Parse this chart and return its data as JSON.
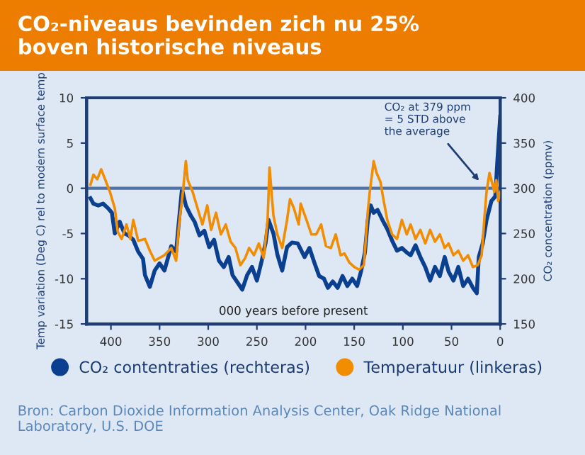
{
  "chart_data": {
    "type": "line",
    "title": "CO₂-niveaus bevinden zich nu 25%\nboven historische niveaus",
    "xlabel": "000 years before present",
    "ylabel": "Temp variation (Deg C) rel to modern surface temp",
    "y2label": "CO₂ concentration (ppmv)",
    "xlim": [
      425,
      0
    ],
    "xticks": [
      400,
      350,
      300,
      250,
      200,
      150,
      100,
      50,
      0
    ],
    "ylim": [
      -15,
      10
    ],
    "yticks": [
      -15,
      -10,
      -5,
      0,
      5,
      10
    ],
    "y2lim": [
      150,
      400
    ],
    "y2ticks": [
      150,
      200,
      250,
      300,
      350,
      400
    ],
    "grid": false,
    "legend": "bottom",
    "ref_lines": [
      {
        "axis": "y",
        "value": 0,
        "color": "#4f73a6"
      }
    ],
    "annotations": [
      "CO₂ at 379 ppm\n= 5 STD above\nthe average",
      "Bron: Carbon Dioxide Information Analysis Center, Oak Ridge National Laboratory, U.S. DOE"
    ],
    "series": [
      {
        "name": "CO₂ contentraties (rechteras)",
        "color": "#0b3f8f",
        "axis": "y2",
        "x": [
          421,
          418,
          413,
          408,
          403,
          399,
          396,
          391,
          386,
          382,
          377,
          372,
          367,
          365,
          360,
          355,
          350,
          345,
          338,
          333,
          330,
          327,
          323,
          318,
          314,
          309,
          304,
          299,
          294,
          289,
          284,
          279,
          275,
          270,
          265,
          260,
          255,
          250,
          245,
          241,
          238,
          233,
          229,
          224,
          219,
          214,
          208,
          201,
          196,
          191,
          186,
          181,
          177,
          172,
          167,
          162,
          157,
          152,
          147,
          143,
          139,
          136,
          133,
          130,
          126,
          121,
          116,
          111,
          106,
          101,
          96,
          92,
          87,
          82,
          77,
          72,
          67,
          62,
          57,
          53,
          48,
          43,
          38,
          33,
          28,
          24,
          22,
          18,
          14,
          9,
          5,
          3,
          0
        ],
        "values": [
          289,
          283,
          281,
          283,
          278,
          273,
          250,
          263,
          250,
          248,
          243,
          230,
          222,
          204,
          191,
          209,
          217,
          209,
          236,
          230,
          265,
          299,
          281,
          270,
          263,
          248,
          253,
          235,
          243,
          220,
          213,
          224,
          204,
          196,
          188,
          204,
          213,
          198,
          220,
          240,
          265,
          250,
          227,
          209,
          235,
          240,
          239,
          224,
          234,
          218,
          203,
          200,
          190,
          197,
          190,
          203,
          192,
          200,
          192,
          208,
          229,
          265,
          281,
          273,
          276,
          265,
          255,
          242,
          231,
          234,
          229,
          226,
          237,
          224,
          213,
          198,
          213,
          203,
          224,
          208,
          198,
          213,
          192,
          200,
          190,
          184,
          224,
          239,
          265,
          286,
          291,
          328,
          379
        ]
      },
      {
        "name": "Temperatuur (linkeras)",
        "color": "#f28c00",
        "axis": "y",
        "x": [
          421,
          418,
          414,
          410,
          406,
          401,
          396,
          393,
          389,
          384,
          380,
          377,
          372,
          365,
          360,
          355,
          345,
          338,
          333,
          330,
          326,
          323,
          321,
          316,
          311,
          306,
          301,
          297,
          292,
          287,
          282,
          277,
          272,
          267,
          262,
          258,
          253,
          248,
          243,
          239,
          237,
          233,
          229,
          224,
          219,
          216,
          212,
          207,
          205,
          199,
          194,
          189,
          184,
          179,
          174,
          169,
          164,
          160,
          155,
          150,
          145,
          140,
          136,
          134,
          130,
          127,
          123,
          120,
          116,
          111,
          106,
          101,
          96,
          92,
          87,
          82,
          77,
          72,
          67,
          62,
          57,
          53,
          48,
          43,
          38,
          33,
          28,
          23,
          19,
          16,
          14,
          11,
          9,
          6,
          4,
          2,
          0
        ],
        "values": [
          0.4,
          1.5,
          1.0,
          2.1,
          1.0,
          -0.4,
          -2.2,
          -4.8,
          -5.6,
          -4.0,
          -5.6,
          -3.5,
          -5.8,
          -5.6,
          -6.9,
          -8.0,
          -7.4,
          -6.6,
          -8.0,
          -4.0,
          -0.4,
          3.0,
          0.9,
          -0.4,
          -2.2,
          -4.0,
          -1.9,
          -4.6,
          -2.7,
          -5.1,
          -4.0,
          -5.9,
          -6.6,
          -8.5,
          -7.7,
          -6.6,
          -7.4,
          -6.1,
          -7.7,
          -3.5,
          2.3,
          -3.0,
          -5.1,
          -6.6,
          -3.5,
          -1.2,
          -2.2,
          -4.0,
          -1.7,
          -3.5,
          -5.1,
          -5.1,
          -4.0,
          -6.4,
          -6.6,
          -5.1,
          -7.4,
          -7.2,
          -8.2,
          -8.7,
          -9.0,
          -8.5,
          -2.5,
          -0.4,
          3.0,
          1.7,
          0.7,
          -1.2,
          -3.5,
          -5.1,
          -5.6,
          -3.5,
          -5.1,
          -4.0,
          -5.6,
          -4.6,
          -6.1,
          -4.6,
          -5.9,
          -5.1,
          -6.6,
          -6.1,
          -7.4,
          -6.9,
          -8.0,
          -7.4,
          -8.7,
          -8.5,
          -7.4,
          -3.0,
          -0.4,
          1.7,
          0.9,
          -0.4,
          0.9,
          -1.4,
          -0.4
        ]
      }
    ]
  }
}
